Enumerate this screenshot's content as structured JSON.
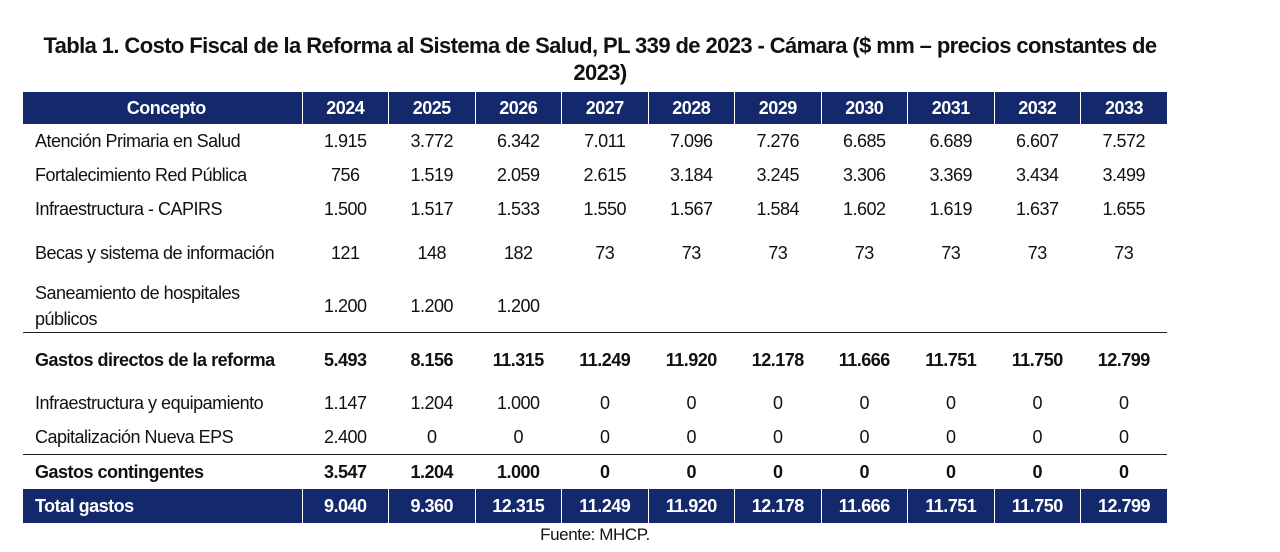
{
  "title": "Tabla 1. Costo Fiscal de la Reforma al Sistema de Salud, PL 339 de 2023 - Cámara ($ mm – precios constantes de 2023)",
  "table": {
    "header": [
      "Concepto",
      "2024",
      "2025",
      "2026",
      "2027",
      "2028",
      "2029",
      "2030",
      "2031",
      "2032",
      "2033"
    ],
    "rows": [
      [
        "Atención Primaria en Salud",
        "1.915",
        "3.772",
        "6.342",
        "7.011",
        "7.096",
        "7.276",
        "6.685",
        "6.689",
        "6.607",
        "7.572"
      ],
      [
        "Fortalecimiento Red Pública",
        "756",
        "1.519",
        "2.059",
        "2.615",
        "3.184",
        "3.245",
        "3.306",
        "3.369",
        "3.434",
        "3.499"
      ],
      [
        "Infraestructura - CAPIRS",
        "1.500",
        "1.517",
        "1.533",
        "1.550",
        "1.567",
        "1.584",
        "1.602",
        "1.619",
        "1.637",
        "1.655"
      ],
      [
        "Becas y sistema de información",
        "121",
        "148",
        "182",
        "73",
        "73",
        "73",
        "73",
        "73",
        "73",
        "73"
      ],
      [
        "Saneamiento de hospitales públicos",
        "1.200",
        "1.200",
        "1.200",
        null,
        null,
        null,
        null,
        null,
        null,
        null
      ],
      [
        "Gastos directos de la reforma",
        "5.493",
        "8.156",
        "11.315",
        "11.249",
        "11.920",
        "12.178",
        "11.666",
        "11.751",
        "11.750",
        "12.799"
      ],
      [
        "Infraestructura y equipamiento",
        "1.147",
        "1.204",
        "1.000",
        "0",
        "0",
        "0",
        "0",
        "0",
        "0",
        "0"
      ],
      [
        "Capitalización Nueva EPS",
        "2.400",
        "0",
        "0",
        "0",
        "0",
        "0",
        "0",
        "0",
        "0",
        "0"
      ],
      [
        "Gastos contingentes",
        "3.547",
        "1.204",
        "1.000",
        "0",
        "0",
        "0",
        "0",
        "0",
        "0",
        "0"
      ],
      [
        "Total gastos",
        "9.040",
        "9.360",
        "12.315",
        "11.249",
        "11.920",
        "12.178",
        "11.666",
        "11.751",
        "11.750",
        "12.799"
      ]
    ]
  },
  "source": "Fuente: MHCP."
}
